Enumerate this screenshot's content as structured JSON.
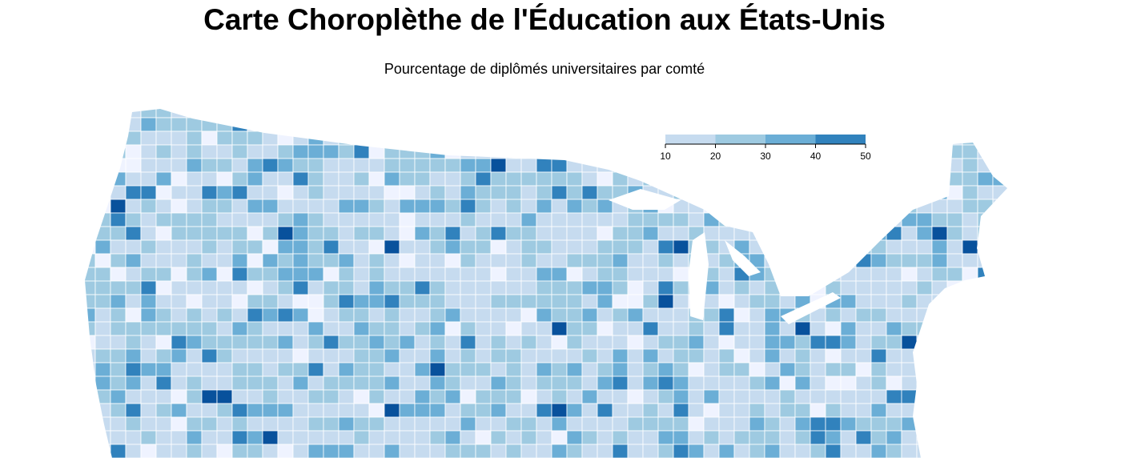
{
  "title": "Carte Choroplèthe de l'Éducation aux États-Unis",
  "subtitle": "Pourcentage de diplômés universitaires par comté",
  "legend": {
    "ticks": [
      10,
      20,
      30,
      40,
      50
    ],
    "colors": [
      "#c6dbef",
      "#9ecae1",
      "#6baed6",
      "#3182bd"
    ]
  }
}
